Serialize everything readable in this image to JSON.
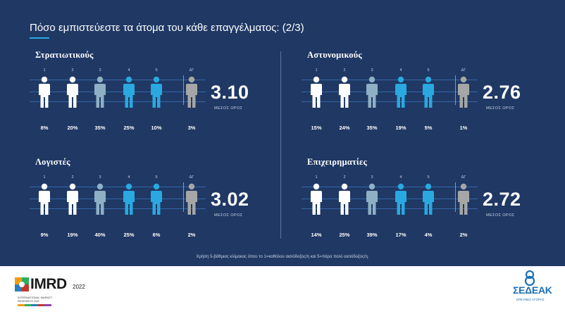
{
  "slide": {
    "title": "Πόσο εμπιστεύεστε τα άτομα του κάθε επαγγέλματος: (2/3)",
    "scale_labels": [
      "1",
      "2",
      "3",
      "4",
      "5",
      "ΔΓ"
    ],
    "mean_label": "ΜΕΣΟΣ ΟΡΟΣ",
    "footnote": "Χρήση 5-βάθμιας κλίμακας όπου το 1=καθόλου αισιόδοξος/η και 5=πάρα πολύ αισιόδοξος/η.",
    "panels": [
      {
        "title": "Στρατιωτικούς",
        "percents": [
          "8%",
          "20%",
          "35%",
          "25%",
          "10%",
          "3%"
        ],
        "mean": "3.10"
      },
      {
        "title": "Αστυνομικούς",
        "percents": [
          "15%",
          "24%",
          "35%",
          "19%",
          "5%",
          "1%"
        ],
        "mean": "2.76"
      },
      {
        "title": "Λογιστές",
        "percents": [
          "9%",
          "19%",
          "40%",
          "25%",
          "6%",
          "2%"
        ],
        "mean": "3.02"
      },
      {
        "title": "Επιχειρηματίες",
        "percents": [
          "14%",
          "25%",
          "39%",
          "17%",
          "4%",
          "2%"
        ],
        "mean": "2.72"
      }
    ]
  },
  "figure_colors": [
    "#ffffff",
    "#ffffff",
    "#8fb0c4",
    "#29a9e0",
    "#29a9e0",
    "#a6a6a6"
  ],
  "footer": {
    "left_logo": {
      "name": "IMRD",
      "year": "2022",
      "subtitle": "INTERNATIONAL MARKET RESEARCH DAY"
    },
    "right_logo": {
      "name": "ΣΕΔΕΑΚ",
      "subtitle": "ΕΡΕΥΝΕΣ ΑΓΟΡΑΣ"
    }
  }
}
